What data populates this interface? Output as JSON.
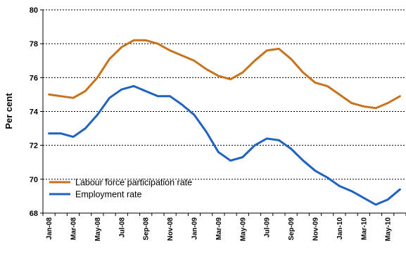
{
  "chart_data": {
    "type": "line",
    "title": "",
    "xlabel": "",
    "ylabel": "Per cent",
    "ylim": [
      68,
      80
    ],
    "yticks": [
      68,
      70,
      72,
      74,
      76,
      78,
      80
    ],
    "grid": true,
    "legend_position": "bottom-left",
    "categories": [
      "Jan-08",
      "Feb-08",
      "Mar-08",
      "Apr-08",
      "May-08",
      "Jun-08",
      "Jul-08",
      "Aug-08",
      "Sep-08",
      "Oct-08",
      "Nov-08",
      "Dec-08",
      "Jan-09",
      "Feb-09",
      "Mar-09",
      "Apr-09",
      "May-09",
      "Jun-09",
      "Jul-09",
      "Aug-09",
      "Sep-09",
      "Oct-09",
      "Nov-09",
      "Dec-09",
      "Jan-10",
      "Feb-10",
      "Mar-10",
      "Apr-10",
      "May-10",
      "Jun-10"
    ],
    "tick_labels": [
      "Jan-08",
      "",
      "Mar-08",
      "",
      "May-08",
      "",
      "Jul-08",
      "",
      "Sep-08",
      "",
      "Nov-08",
      "",
      "Jan-09",
      "",
      "Mar-09",
      "",
      "May-09",
      "",
      "Jul-09",
      "",
      "Sep-09",
      "",
      "Nov-09",
      "",
      "Jan-10",
      "",
      "Mar-10",
      "",
      "May-10",
      ""
    ],
    "series": [
      {
        "name": "Labour force participation rate",
        "color": "#C8731C",
        "values": [
          75.0,
          74.9,
          74.8,
          75.2,
          76.0,
          77.1,
          77.8,
          78.2,
          78.2,
          78.0,
          77.6,
          77.3,
          77.0,
          76.5,
          76.1,
          75.9,
          76.3,
          77.0,
          77.6,
          77.7,
          77.1,
          76.3,
          75.7,
          75.5,
          75.0,
          74.5,
          74.3,
          74.2,
          74.5,
          74.9
        ]
      },
      {
        "name": "Employment rate",
        "color": "#1F63C0",
        "values": [
          72.7,
          72.7,
          72.5,
          73.0,
          73.8,
          74.8,
          75.3,
          75.5,
          75.2,
          74.9,
          74.9,
          74.4,
          73.8,
          72.8,
          71.6,
          71.1,
          71.3,
          72.0,
          72.4,
          72.3,
          71.8,
          71.1,
          70.5,
          70.1,
          69.6,
          69.3,
          68.9,
          68.5,
          68.8,
          69.4
        ]
      }
    ]
  }
}
